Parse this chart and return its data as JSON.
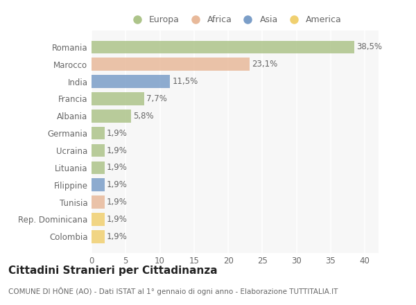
{
  "countries": [
    "Romania",
    "Marocco",
    "India",
    "Francia",
    "Albania",
    "Germania",
    "Ucraina",
    "Lituania",
    "Filippine",
    "Tunisia",
    "Rep. Dominicana",
    "Colombia"
  ],
  "values": [
    38.5,
    23.1,
    11.5,
    7.7,
    5.8,
    1.9,
    1.9,
    1.9,
    1.9,
    1.9,
    1.9,
    1.9
  ],
  "labels": [
    "38,5%",
    "23,1%",
    "11,5%",
    "7,7%",
    "5,8%",
    "1,9%",
    "1,9%",
    "1,9%",
    "1,9%",
    "1,9%",
    "1,9%",
    "1,9%"
  ],
  "continents": [
    "Europa",
    "Africa",
    "Asia",
    "Europa",
    "Europa",
    "Europa",
    "Europa",
    "Europa",
    "Asia",
    "Africa",
    "America",
    "America"
  ],
  "colors": {
    "Europa": "#adc48a",
    "Africa": "#e8b99a",
    "Asia": "#7b9ec8",
    "America": "#f0d070"
  },
  "legend_order": [
    "Europa",
    "Africa",
    "Asia",
    "America"
  ],
  "xlim": [
    0,
    42
  ],
  "xticks": [
    0,
    5,
    10,
    15,
    20,
    25,
    30,
    35,
    40
  ],
  "title": "Cittadini Stranieri per Cittadinanza",
  "subtitle": "COMUNE DI HÔNE (AO) - Dati ISTAT al 1° gennaio di ogni anno - Elaborazione TUTTITALIA.IT",
  "background_color": "#ffffff",
  "plot_bg_color": "#f7f7f7",
  "bar_height": 0.75,
  "grid_color": "#ffffff",
  "text_color": "#666666",
  "label_fontsize": 8.5,
  "tick_fontsize": 8.5,
  "title_fontsize": 11,
  "subtitle_fontsize": 7.5
}
